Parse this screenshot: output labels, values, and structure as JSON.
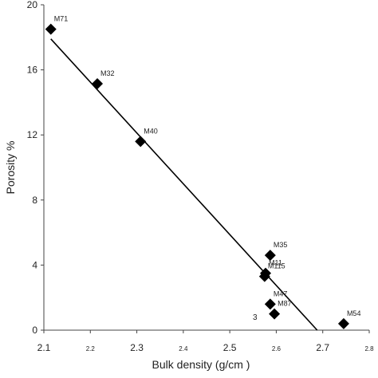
{
  "chart_data": {
    "type": "scatter",
    "x_label": "Bulk density (g/cm )",
    "y_label": "Porosity %",
    "annotation": "3",
    "points": {
      "names": [
        "M71",
        "M32",
        "M40",
        "M35",
        "M11",
        "M115",
        "M47",
        "M87",
        "M54"
      ],
      "x": [
        2.115,
        2.215,
        2.308,
        2.587,
        2.577,
        2.575,
        2.587,
        2.596,
        2.745
      ],
      "y": [
        18.5,
        15.15,
        11.6,
        4.6,
        3.5,
        3.3,
        1.6,
        1.0,
        0.4
      ],
      "color": "#000000"
    },
    "trend_line": {
      "x": [
        2.115,
        2.688
      ],
      "y": [
        17.9,
        0
      ],
      "color": "#000000"
    },
    "xlim": [
      2.1,
      2.8
    ],
    "xticks": [
      2.1,
      2.2,
      2.3,
      2.4,
      2.5,
      2.6,
      2.7,
      2.8
    ],
    "ylim": [
      0,
      20
    ],
    "yticks": [
      0,
      4,
      8,
      12,
      16,
      20
    ]
  }
}
